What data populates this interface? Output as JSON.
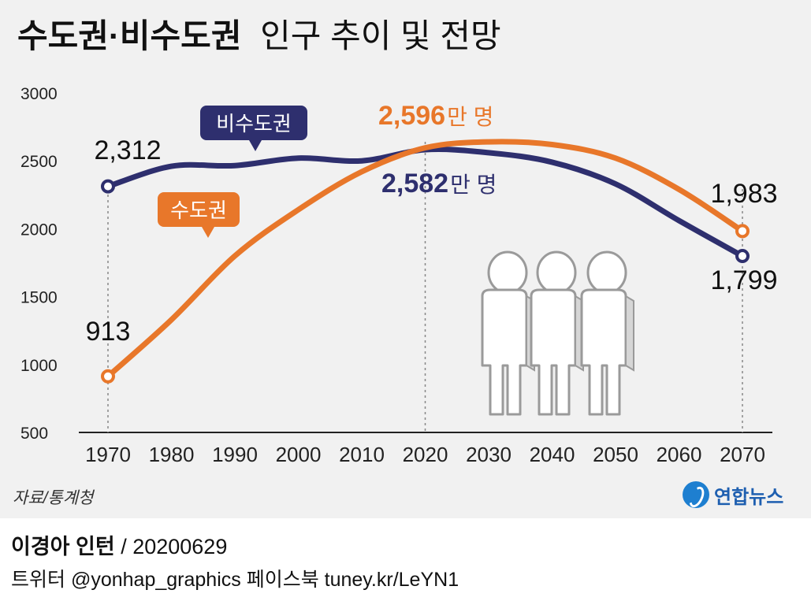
{
  "title": {
    "bold": "수도권·비수도권",
    "regular": "인구 추이 및 전망"
  },
  "colors": {
    "capital": "#e8772a",
    "noncapital": "#2e2f6e",
    "background": "#f1f1f1"
  },
  "chart_data": {
    "type": "line",
    "x": [
      1970,
      1980,
      1990,
      2000,
      2010,
      2020,
      2030,
      2040,
      2050,
      2060,
      2070
    ],
    "x_tick_labels": [
      "1970",
      "1980",
      "1990",
      "2000",
      "2010",
      "2020",
      "2030",
      "2040",
      "2050",
      "2060",
      "2070"
    ],
    "y_tick_labels": [
      "3000",
      "2500",
      "2000",
      "1500",
      "1000",
      "500"
    ],
    "ylim": [
      500,
      3000
    ],
    "grid": false,
    "series": [
      {
        "name": "비수도권",
        "color": "#2e2f6e",
        "values": [
          2312,
          2460,
          2465,
          2520,
          2500,
          2582,
          2560,
          2490,
          2330,
          2060,
          1799
        ]
      },
      {
        "name": "수도권",
        "color": "#e8772a",
        "values": [
          913,
          1330,
          1800,
          2140,
          2420,
          2596,
          2640,
          2620,
          2520,
          2290,
          1983
        ]
      }
    ],
    "annotations": {
      "noncapital_start": "2,312",
      "capital_start": "913",
      "capital_2020": "2,596",
      "noncapital_2020": "2,582",
      "unit": "만 명",
      "capital_end": "1,983",
      "noncapital_end": "1,799"
    }
  },
  "source": "자료/통계청",
  "logo": "연합뉴스",
  "footer": {
    "author": "이경아 인턴",
    "date": " / 20200629",
    "social": "트위터 @yonhap_graphics  페이스북 tuney.kr/LeYN1"
  }
}
